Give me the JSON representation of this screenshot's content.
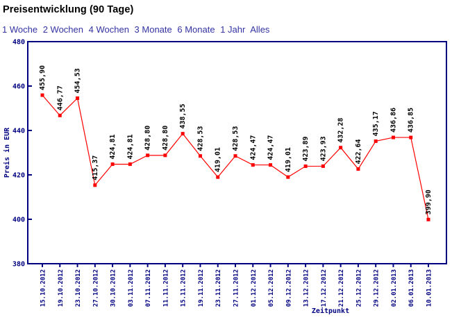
{
  "page": {
    "title": "Preisentwicklung (90 Tage)"
  },
  "range_links": [
    {
      "label": "1 Woche"
    },
    {
      "label": "2 Wochen"
    },
    {
      "label": "4 Wochen"
    },
    {
      "label": "3 Monate"
    },
    {
      "label": "6 Monate"
    },
    {
      "label": "1 Jahr"
    },
    {
      "label": "Alles"
    }
  ],
  "chart_data": {
    "type": "line",
    "title": "",
    "xlabel": "Zeitpunkt",
    "ylabel": "Preis in EUR",
    "ylim": [
      380,
      480
    ],
    "yticks": [
      380,
      400,
      420,
      440,
      460,
      480
    ],
    "grid": false,
    "legend": "none",
    "marker": "square",
    "axis_color": "#000080",
    "line_color": "#ff0000",
    "marker_color": "#ff0000",
    "point_label_color": "#000000",
    "categories": [
      "15.10.2012",
      "19.10.2012",
      "23.10.2012",
      "27.10.2012",
      "30.10.2012",
      "03.11.2012",
      "07.11.2012",
      "11.11.2012",
      "15.11.2012",
      "19.11.2012",
      "23.11.2012",
      "27.11.2012",
      "01.12.2012",
      "05.12.2012",
      "09.12.2012",
      "13.12.2012",
      "17.12.2012",
      "21.12.2012",
      "25.12.2012",
      "29.12.2012",
      "02.01.2013",
      "06.01.2013",
      "10.01.2013"
    ],
    "values": [
      455.9,
      446.77,
      454.53,
      415.37,
      424.81,
      424.81,
      428.8,
      428.8,
      438.55,
      428.53,
      419.01,
      428.53,
      424.47,
      424.47,
      419.01,
      423.89,
      423.93,
      432.28,
      422.64,
      435.17,
      436.86,
      436.85,
      399.9
    ],
    "point_labels": [
      "455,90",
      "446,77",
      "454,53",
      "415,37",
      "424,81",
      "424,81",
      "428,80",
      "428,80",
      "438,55",
      "428,53",
      "419,01",
      "428,53",
      "424,47",
      "424,47",
      "419,01",
      "423,89",
      "423,93",
      "432,28",
      "422,64",
      "435,17",
      "436,86",
      "436,85",
      "399,90"
    ]
  }
}
